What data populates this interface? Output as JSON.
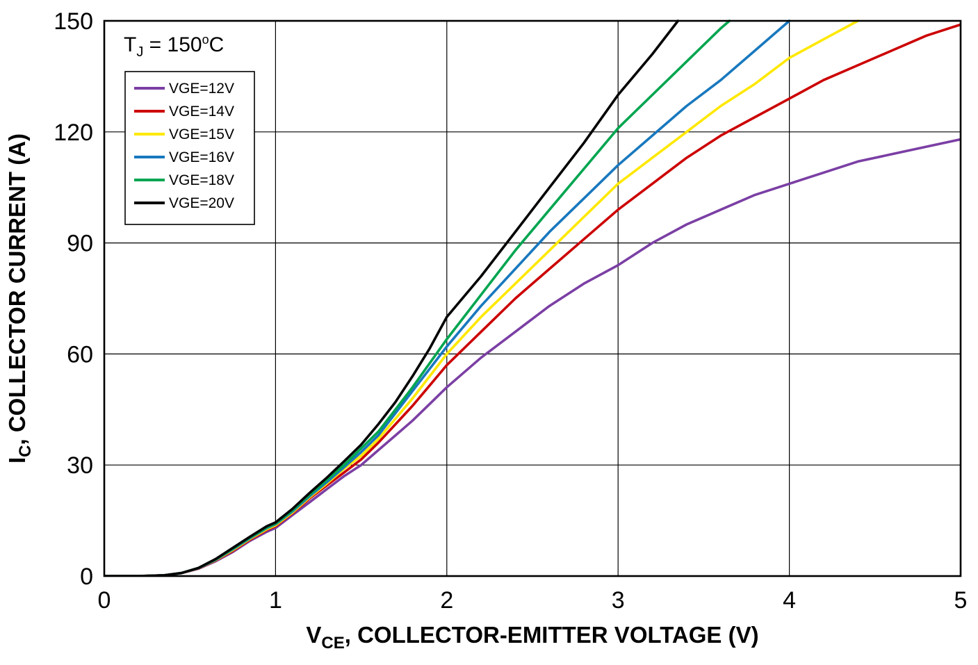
{
  "chart_data": {
    "type": "line",
    "title": "",
    "annotation": {
      "pre": "T",
      "sub": "J",
      "mid": " = 150",
      "sup": "o",
      "post": "C"
    },
    "xlabel": {
      "pre": "V",
      "sub": "CE",
      "post": ", COLLECTOR-EMITTER VOLTAGE (V)"
    },
    "ylabel": {
      "pre": "I",
      "sub": "C",
      "post": ", COLLECTOR CURRENT (A)"
    },
    "xlim": [
      0,
      5
    ],
    "ylim": [
      0,
      150
    ],
    "xticks": [
      0,
      1,
      2,
      3,
      4,
      5
    ],
    "yticks": [
      0,
      30,
      60,
      90,
      120,
      150
    ],
    "grid": true,
    "legend_position": "top-left",
    "series": [
      {
        "name": "VGE=12V",
        "color": "#7b3fa4",
        "x": [
          0,
          0.2,
          0.35,
          0.45,
          0.55,
          0.65,
          0.75,
          0.85,
          0.95,
          1.0,
          1.1,
          1.2,
          1.3,
          1.4,
          1.5,
          1.6,
          1.7,
          1.8,
          1.9,
          2.0,
          2.2,
          2.4,
          2.6,
          2.8,
          3.0,
          3.2,
          3.4,
          3.6,
          3.8,
          4.0,
          4.2,
          4.4,
          4.6,
          4.8,
          5.0
        ],
        "y": [
          0,
          0,
          0.2,
          0.8,
          2,
          4,
          6.5,
          9.5,
          12,
          13,
          16.5,
          20,
          23.5,
          27,
          30,
          34,
          38,
          42,
          46.5,
          51,
          59,
          66,
          73,
          79,
          84,
          90,
          95,
          99,
          103,
          106,
          109,
          112,
          114,
          116,
          118
        ]
      },
      {
        "name": "VGE=14V",
        "color": "#cc0000",
        "x": [
          0,
          0.2,
          0.35,
          0.45,
          0.55,
          0.65,
          0.75,
          0.85,
          0.95,
          1.0,
          1.1,
          1.2,
          1.3,
          1.4,
          1.5,
          1.6,
          1.7,
          1.8,
          1.9,
          2.0,
          2.2,
          2.4,
          2.6,
          2.8,
          3.0,
          3.2,
          3.4,
          3.6,
          3.8,
          4.0,
          4.2,
          4.4,
          4.6,
          4.8,
          5.0
        ],
        "y": [
          0,
          0,
          0.2,
          0.8,
          2,
          4.2,
          6.8,
          9.8,
          12.5,
          13.5,
          17,
          21,
          24.5,
          28,
          31.5,
          36,
          41,
          46,
          51.5,
          57,
          66,
          75,
          83,
          91,
          99,
          106,
          113,
          119,
          124,
          129,
          134,
          138,
          142,
          146,
          149
        ]
      },
      {
        "name": "VGE=15V",
        "color": "#ffe800",
        "x": [
          0,
          0.2,
          0.35,
          0.45,
          0.55,
          0.65,
          0.75,
          0.85,
          0.95,
          1.0,
          1.1,
          1.2,
          1.3,
          1.4,
          1.5,
          1.6,
          1.7,
          1.8,
          1.9,
          2.0,
          2.2,
          2.4,
          2.6,
          2.8,
          3.0,
          3.2,
          3.4,
          3.6,
          3.8,
          4.0,
          4.2,
          4.4
        ],
        "y": [
          0,
          0,
          0.2,
          0.8,
          2.1,
          4.3,
          7,
          10,
          12.7,
          13.7,
          17.2,
          21.3,
          25,
          29,
          32.5,
          37,
          42.5,
          48,
          54,
          60,
          70,
          79,
          88,
          97,
          106,
          113,
          120,
          127,
          133,
          140,
          145,
          150
        ]
      },
      {
        "name": "VGE=16V",
        "color": "#1878be",
        "x": [
          0,
          0.2,
          0.35,
          0.45,
          0.55,
          0.65,
          0.75,
          0.85,
          0.95,
          1.0,
          1.1,
          1.2,
          1.3,
          1.4,
          1.5,
          1.6,
          1.7,
          1.8,
          1.9,
          2.0,
          2.2,
          2.4,
          2.6,
          2.8,
          3.0,
          3.2,
          3.4,
          3.6,
          3.8,
          4.0
        ],
        "y": [
          0,
          0,
          0.2,
          0.8,
          2.1,
          4.4,
          7.2,
          10.2,
          13,
          14,
          17.5,
          21.6,
          25.4,
          29.4,
          33.5,
          38,
          44,
          50,
          56,
          62,
          73,
          83,
          93,
          102,
          111,
          119,
          127,
          134,
          142,
          150
        ]
      },
      {
        "name": "VGE=18V",
        "color": "#00a550",
        "x": [
          0,
          0.2,
          0.35,
          0.45,
          0.55,
          0.65,
          0.75,
          0.85,
          0.95,
          1.0,
          1.1,
          1.2,
          1.3,
          1.4,
          1.5,
          1.6,
          1.7,
          1.8,
          1.9,
          2.0,
          2.2,
          2.4,
          2.6,
          2.8,
          3.0,
          3.2,
          3.4,
          3.6,
          3.65
        ],
        "y": [
          0,
          0,
          0.2,
          0.8,
          2.2,
          4.5,
          7.4,
          10.4,
          13.2,
          14.2,
          17.8,
          22,
          26,
          30,
          34.5,
          39,
          45,
          51,
          57.5,
          64,
          76,
          88,
          99,
          110,
          121,
          130,
          139,
          148,
          150
        ]
      },
      {
        "name": "VGE=20V",
        "color": "#000000",
        "x": [
          0,
          0.2,
          0.35,
          0.45,
          0.55,
          0.65,
          0.75,
          0.85,
          0.95,
          1.0,
          1.1,
          1.2,
          1.3,
          1.4,
          1.5,
          1.6,
          1.7,
          1.8,
          1.9,
          2.0,
          2.2,
          2.4,
          2.6,
          2.8,
          3.0,
          3.2,
          3.35
        ],
        "y": [
          0,
          0,
          0.2,
          0.8,
          2.2,
          4.6,
          7.6,
          10.6,
          13.5,
          14.5,
          18.2,
          22.5,
          26.6,
          31,
          35.5,
          41,
          47,
          54,
          61.5,
          70,
          81,
          93,
          105,
          117,
          130,
          141,
          150
        ]
      }
    ],
    "colors": {
      "grid": "#000000",
      "border": "#000000",
      "background": "#ffffff"
    }
  }
}
